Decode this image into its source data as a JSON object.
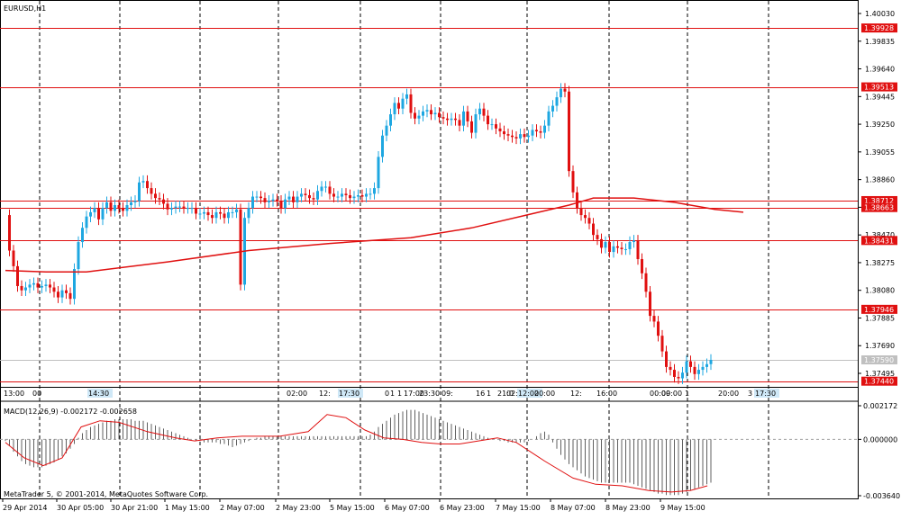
{
  "window": {
    "symbol_title": "EURUSD,H1",
    "macd_title": "MACD(12,26,9) -0.002172 -0.002658",
    "copyright": "MetaTrader 5, © 2001-2014, MetaQuotes Software Corp."
  },
  "colors": {
    "bull": "#1EA7E1",
    "bear": "#E01010",
    "level_line": "#E01010",
    "ma_line": "#E01010",
    "grid": "#000000",
    "macd_hist": "#606060",
    "macd_signal": "#E01010",
    "price_line": "#C0C0C0",
    "axis_label_bg": "#E01010"
  },
  "chart_data": {
    "type": "candlestick",
    "symbol": "EURUSD",
    "timeframe": "H1",
    "price_axis_ticks": [
      "1.40030",
      "1.39835",
      "1.39640",
      "1.39445",
      "1.39250",
      "1.39055",
      "1.38860",
      "1.38665",
      "1.38470",
      "1.38275",
      "1.38080",
      "1.37885",
      "1.37690",
      "1.37495"
    ],
    "price_ylim": [
      1.374,
      1.4003
    ],
    "level_lines": [
      {
        "label": "1.39928",
        "value": 1.39928
      },
      {
        "label": "1.39513",
        "value": 1.39513
      },
      {
        "label": "1.38712",
        "value": 1.38712
      },
      {
        "label": "1.38663",
        "value": 1.38663
      },
      {
        "label": "1.38431",
        "value": 1.38431
      },
      {
        "label": "1.37946",
        "value": 1.37946
      },
      {
        "label": "1.37440",
        "value": 1.3744
      }
    ],
    "current_price": {
      "label": "1.37590",
      "value": 1.3759
    },
    "time_axis_labels": [
      "29 Apr 2014",
      "30 Apr 05:00",
      "30 Apr 21:00",
      "1 May 15:00",
      "2 May 07:00",
      "2 May 23:00",
      "5 May 15:00",
      "6 May 07:00",
      "6 May 23:00",
      "7 May 15:00",
      "8 May 07:00",
      "8 May 23:00",
      "9 May 15:00"
    ],
    "session_markers": [
      "13:00",
      "00",
      "14:30",
      "02:00",
      "12:",
      "17:30",
      "0",
      "1",
      "1",
      "17:00",
      "23:30",
      "09:",
      "16",
      "1",
      "21:0",
      "02:00",
      "12:00",
      "20:00",
      "12:",
      "16:00",
      "00:00",
      "09:00",
      "1",
      "20:00",
      "3",
      "17:30"
    ],
    "close_path": [
      [
        0,
        1.3861
      ],
      [
        1,
        1.3836
      ],
      [
        2,
        1.3825
      ],
      [
        3,
        1.3811
      ],
      [
        4,
        1.3808
      ],
      [
        5,
        1.381
      ],
      [
        6,
        1.3812
      ],
      [
        7,
        1.3813
      ],
      [
        8,
        1.381
      ],
      [
        9,
        1.3811
      ],
      [
        10,
        1.3812
      ],
      [
        11,
        1.381
      ],
      [
        12,
        1.3807
      ],
      [
        13,
        1.3803
      ],
      [
        14,
        1.3808
      ],
      [
        15,
        1.3806
      ],
      [
        16,
        1.3802
      ],
      [
        17,
        1.3823
      ],
      [
        18,
        1.3842
      ],
      [
        19,
        1.3852
      ],
      [
        20,
        1.386
      ],
      [
        21,
        1.3863
      ],
      [
        22,
        1.3866
      ],
      [
        23,
        1.3858
      ],
      [
        24,
        1.3866
      ],
      [
        25,
        1.387
      ],
      [
        26,
        1.3864
      ],
      [
        27,
        1.3868
      ],
      [
        28,
        1.3866
      ],
      [
        29,
        1.3864
      ],
      [
        30,
        1.3868
      ],
      [
        31,
        1.387
      ],
      [
        32,
        1.3871
      ],
      [
        33,
        1.3884
      ],
      [
        34,
        1.3885
      ],
      [
        35,
        1.388
      ],
      [
        36,
        1.3876
      ],
      [
        37,
        1.3873
      ],
      [
        38,
        1.3872
      ],
      [
        39,
        1.3869
      ],
      [
        40,
        1.3865
      ],
      [
        41,
        1.3866
      ],
      [
        42,
        1.3867
      ],
      [
        43,
        1.3867
      ],
      [
        44,
        1.3866
      ],
      [
        45,
        1.3866
      ],
      [
        46,
        1.3866
      ],
      [
        47,
        1.3862
      ],
      [
        48,
        1.3862
      ],
      [
        49,
        1.3863
      ],
      [
        50,
        1.3861
      ],
      [
        51,
        1.3859
      ],
      [
        52,
        1.3863
      ],
      [
        53,
        1.3862
      ],
      [
        54,
        1.3859
      ],
      [
        55,
        1.3863
      ],
      [
        56,
        1.3863
      ],
      [
        57,
        1.3865
      ],
      [
        58,
        1.3812
      ],
      [
        59,
        1.3859
      ],
      [
        60,
        1.3866
      ],
      [
        61,
        1.3874
      ],
      [
        62,
        1.3874
      ],
      [
        63,
        1.3873
      ],
      [
        64,
        1.387
      ],
      [
        65,
        1.3871
      ],
      [
        66,
        1.3872
      ],
      [
        67,
        1.3871
      ],
      [
        68,
        1.3866
      ],
      [
        69,
        1.3872
      ],
      [
        70,
        1.3874
      ],
      [
        71,
        1.387
      ],
      [
        72,
        1.3874
      ],
      [
        73,
        1.3876
      ],
      [
        74,
        1.3875
      ],
      [
        75,
        1.3873
      ],
      [
        76,
        1.3872
      ],
      [
        77,
        1.3878
      ],
      [
        78,
        1.3881
      ],
      [
        79,
        1.3881
      ],
      [
        80,
        1.3876
      ],
      [
        81,
        1.3874
      ],
      [
        82,
        1.3874
      ],
      [
        83,
        1.3876
      ],
      [
        84,
        1.3875
      ],
      [
        85,
        1.3873
      ],
      [
        86,
        1.3874
      ],
      [
        87,
        1.3875
      ],
      [
        88,
        1.3874
      ],
      [
        89,
        1.3876
      ],
      [
        90,
        1.3876
      ],
      [
        91,
        1.388
      ],
      [
        92,
        1.3902
      ],
      [
        93,
        1.3917
      ],
      [
        94,
        1.3924
      ],
      [
        95,
        1.3932
      ],
      [
        96,
        1.394
      ],
      [
        97,
        1.3936
      ],
      [
        98,
        1.3943
      ],
      [
        99,
        1.3946
      ],
      [
        100,
        1.3933
      ],
      [
        101,
        1.3929
      ],
      [
        102,
        1.3931
      ],
      [
        103,
        1.3934
      ],
      [
        104,
        1.3935
      ],
      [
        105,
        1.3932
      ],
      [
        106,
        1.3933
      ],
      [
        107,
        1.393
      ],
      [
        108,
        1.3929
      ],
      [
        109,
        1.3928
      ],
      [
        110,
        1.3929
      ],
      [
        111,
        1.3928
      ],
      [
        112,
        1.3924
      ],
      [
        113,
        1.3934
      ],
      [
        114,
        1.3927
      ],
      [
        115,
        1.3919
      ],
      [
        116,
        1.3932
      ],
      [
        117,
        1.3936
      ],
      [
        118,
        1.3931
      ],
      [
        119,
        1.3925
      ],
      [
        120,
        1.3925
      ],
      [
        121,
        1.3922
      ],
      [
        122,
        1.392
      ],
      [
        123,
        1.3918
      ],
      [
        124,
        1.3917
      ],
      [
        125,
        1.3916
      ],
      [
        126,
        1.3915
      ],
      [
        127,
        1.3918
      ],
      [
        128,
        1.3916
      ],
      [
        129,
        1.3917
      ],
      [
        130,
        1.3921
      ],
      [
        131,
        1.392
      ],
      [
        132,
        1.3919
      ],
      [
        133,
        1.3924
      ],
      [
        134,
        1.3934
      ],
      [
        135,
        1.3938
      ],
      [
        136,
        1.3944
      ],
      [
        137,
        1.395
      ],
      [
        138,
        1.3948
      ],
      [
        139,
        1.3892
      ],
      [
        140,
        1.3877
      ],
      [
        141,
        1.3866
      ],
      [
        142,
        1.3861
      ],
      [
        143,
        1.3859
      ],
      [
        144,
        1.3855
      ],
      [
        145,
        1.3847
      ],
      [
        146,
        1.3844
      ],
      [
        147,
        1.3838
      ],
      [
        148,
        1.3842
      ],
      [
        149,
        1.3835
      ],
      [
        150,
        1.3839
      ],
      [
        151,
        1.3838
      ],
      [
        152,
        1.3837
      ],
      [
        153,
        1.3837
      ],
      [
        154,
        1.3842
      ],
      [
        155,
        1.3843
      ],
      [
        156,
        1.383
      ],
      [
        157,
        1.382
      ],
      [
        158,
        1.3807
      ],
      [
        159,
        1.379
      ],
      [
        160,
        1.3786
      ],
      [
        161,
        1.3776
      ],
      [
        162,
        1.3765
      ],
      [
        163,
        1.3754
      ],
      [
        164,
        1.3752
      ],
      [
        165,
        1.3747
      ],
      [
        166,
        1.3746
      ],
      [
        167,
        1.375
      ],
      [
        168,
        1.3758
      ],
      [
        169,
        1.3754
      ],
      [
        170,
        1.3749
      ],
      [
        171,
        1.3752
      ],
      [
        172,
        1.3754
      ],
      [
        173,
        1.3756
      ],
      [
        174,
        1.3759
      ]
    ],
    "ma_points": [
      [
        0,
        1.3822
      ],
      [
        10,
        1.3821
      ],
      [
        20,
        1.3821
      ],
      [
        40,
        1.3828
      ],
      [
        60,
        1.3836
      ],
      [
        80,
        1.3841
      ],
      [
        100,
        1.3845
      ],
      [
        115,
        1.3852
      ],
      [
        130,
        1.3862
      ],
      [
        139,
        1.3868
      ],
      [
        145,
        1.3873
      ],
      [
        155,
        1.3873
      ],
      [
        165,
        1.387
      ],
      [
        175,
        1.3865
      ],
      [
        182,
        1.3863
      ]
    ],
    "macd": {
      "ylim": [
        -0.00364,
        0.002172
      ],
      "axis_ticks": [
        "0.002172",
        "0.000000",
        "-0.003640"
      ],
      "histogram": [
        -0.0001,
        -0.0004,
        -0.0008,
        -0.0011,
        -0.0014,
        -0.0016,
        -0.0017,
        -0.0018,
        -0.0018,
        -0.0018,
        -0.0017,
        -0.0016,
        -0.0015,
        -0.0013,
        -0.0011,
        -0.0009,
        -0.0006,
        -0.0003,
        0.0001,
        0.0004,
        0.0006,
        0.0008,
        0.0009,
        0.001,
        0.0011,
        0.0012,
        0.0012,
        0.0013,
        0.0013,
        0.0013,
        0.0013,
        0.0013,
        0.0012,
        0.0012,
        0.0012,
        0.0011,
        0.001,
        0.0009,
        0.0008,
        0.0007,
        0.0006,
        0.0005,
        0.0004,
        0.0003,
        0.0002,
        0.0001,
        0.0,
        -0.0001,
        -0.0001,
        -0.0002,
        -0.0002,
        -0.0002,
        -0.0002,
        -0.0003,
        -0.0003,
        -0.0004,
        -0.0005,
        -0.0004,
        -0.0003,
        -0.0002,
        -0.0001,
        0.0,
        0.0001,
        0.0001,
        0.0002,
        0.0002,
        0.0002,
        0.0002,
        0.0002,
        0.0002,
        0.0002,
        0.0002,
        0.0002,
        0.0002,
        0.0002,
        0.0002,
        0.0002,
        0.0002,
        0.0002,
        0.0002,
        0.0002,
        0.0002,
        0.0002,
        0.0002,
        0.0002,
        0.0002,
        0.0002,
        0.0002,
        0.0002,
        0.0002,
        0.0003,
        0.0005,
        0.0008,
        0.001,
        0.0012,
        0.0014,
        0.0016,
        0.0017,
        0.0018,
        0.0019,
        0.0019,
        0.0019,
        0.0018,
        0.0017,
        0.0016,
        0.0015,
        0.0014,
        0.0013,
        0.0012,
        0.0011,
        0.001,
        0.0009,
        0.0008,
        0.0007,
        0.0006,
        0.0005,
        0.0004,
        0.0003,
        0.0002,
        0.0001,
        0.0,
        0.0,
        -0.0001,
        -0.0001,
        -0.0002,
        -0.0002,
        -0.0002,
        -0.0002,
        -0.0002,
        -0.0001,
        0.0,
        0.0002,
        0.0004,
        0.0005,
        0.0003,
        -0.0002,
        -0.0006,
        -0.001,
        -0.0013,
        -0.0016,
        -0.0018,
        -0.002,
        -0.0022,
        -0.0024,
        -0.0025,
        -0.0026,
        -0.0027,
        -0.0028,
        -0.0028,
        -0.0028,
        -0.0028,
        -0.0028,
        -0.0028,
        -0.0028,
        -0.0028,
        -0.0029,
        -0.003,
        -0.0031,
        -0.0032,
        -0.0033,
        -0.0034,
        -0.0035,
        -0.0035,
        -0.0036,
        -0.0036,
        -0.0036,
        -0.0036,
        -0.0035,
        -0.0034,
        -0.0033,
        -0.0032,
        -0.0031,
        -0.003,
        -0.0029,
        -0.0028,
        -0.0027,
        -0.0026,
        -0.0025,
        -0.0024,
        -0.0023,
        -0.0022
      ],
      "signal": [
        [
          0,
          -0.0002
        ],
        [
          10,
          -0.0012
        ],
        [
          20,
          -0.0017
        ],
        [
          30,
          -0.0012
        ],
        [
          40,
          0.0008
        ],
        [
          50,
          0.0012
        ],
        [
          60,
          0.0011
        ],
        [
          75,
          0.0005
        ],
        [
          90,
          0.0001
        ],
        [
          100,
          -0.0001
        ],
        [
          112,
          0.0001
        ],
        [
          125,
          0.0002
        ],
        [
          135,
          0.0002
        ],
        [
          145,
          0.0002
        ],
        [
          160,
          0.0005
        ],
        [
          170,
          0.0016
        ],
        [
          180,
          0.0014
        ],
        [
          190,
          0.0006
        ],
        [
          200,
          0.0001
        ],
        [
          210,
          0.0
        ],
        [
          220,
          -0.0002
        ],
        [
          230,
          -0.0003
        ],
        [
          240,
          -0.0003
        ],
        [
          250,
          -0.0001
        ],
        [
          260,
          0.0001
        ],
        [
          270,
          -0.0002
        ],
        [
          285,
          -0.0014
        ],
        [
          300,
          -0.0025
        ],
        [
          312,
          -0.0029
        ],
        [
          326,
          -0.003
        ],
        [
          340,
          -0.0033
        ],
        [
          352,
          -0.0034
        ],
        [
          362,
          -0.0033
        ],
        [
          371,
          -0.003
        ]
      ]
    }
  }
}
